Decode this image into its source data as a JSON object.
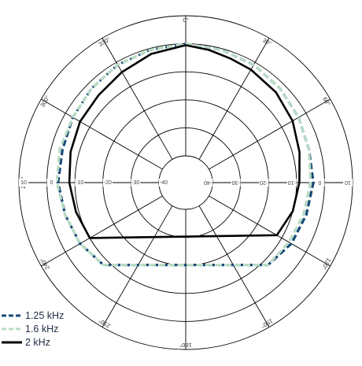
{
  "chart_data": {
    "type": "polar-line",
    "angle_ticks": [
      {
        "angle": 0,
        "label": "0°"
      },
      {
        "angle": 30,
        "label": "30°"
      },
      {
        "angle": 60,
        "label": "60°"
      },
      {
        "angle": 90,
        "label": "90°"
      },
      {
        "angle": 120,
        "label": "120°"
      },
      {
        "angle": 150,
        "label": "150°"
      },
      {
        "angle": 180,
        "label": "180°"
      },
      {
        "angle": 210,
        "label": "210°"
      },
      {
        "angle": 240,
        "label": "240°"
      },
      {
        "angle": 270,
        "label": "270°"
      },
      {
        "angle": 300,
        "label": "300°"
      },
      {
        "angle": 330,
        "label": "330°"
      }
    ],
    "radial_unit": "dB",
    "radial_range": [
      -40,
      10
    ],
    "radial_ticks_left": [
      "10",
      "0",
      "-10",
      "-20",
      "-30",
      "-40"
    ],
    "radial_ticks_right": [
      "-40",
      "-30",
      "-20",
      "-10",
      "0",
      "10"
    ],
    "series": [
      {
        "name": "1.25 kHz",
        "color": "#174a78",
        "style": "dash",
        "points": [
          [
            0,
            0
          ],
          [
            15,
            -0.5
          ],
          [
            30,
            -1
          ],
          [
            45,
            -2
          ],
          [
            60,
            -3
          ],
          [
            75,
            -4
          ],
          [
            90,
            -4
          ],
          [
            105,
            -5
          ],
          [
            120,
            -6
          ],
          [
            135,
            -8
          ],
          [
            225,
            -8
          ],
          [
            240,
            -6
          ],
          [
            255,
            -5
          ],
          [
            270,
            -4
          ],
          [
            285,
            -4
          ],
          [
            300,
            -3
          ],
          [
            315,
            -2
          ],
          [
            330,
            -1
          ],
          [
            345,
            -0.5
          ],
          [
            360,
            0
          ]
        ]
      },
      {
        "name": "1.6 kHz",
        "color": "#b9dcc4",
        "style": "dash",
        "points": [
          [
            0,
            0
          ],
          [
            15,
            -0.5
          ],
          [
            30,
            -1
          ],
          [
            45,
            -2
          ],
          [
            60,
            -3
          ],
          [
            75,
            -4
          ],
          [
            90,
            -5
          ],
          [
            105,
            -6
          ],
          [
            120,
            -7
          ],
          [
            135,
            -8
          ],
          [
            225,
            -8
          ],
          [
            240,
            -6
          ],
          [
            255,
            -5
          ],
          [
            270,
            -3.5
          ],
          [
            285,
            -3
          ],
          [
            300,
            -3
          ],
          [
            315,
            -2
          ],
          [
            330,
            -1
          ],
          [
            345,
            -0.5
          ],
          [
            360,
            0
          ]
        ]
      },
      {
        "name": "2 kHz",
        "color": "#000000",
        "style": "solid",
        "points": [
          [
            0,
            -0.5
          ],
          [
            10,
            -1.5
          ],
          [
            20,
            -2.5
          ],
          [
            30,
            -3
          ],
          [
            45,
            -4
          ],
          [
            60,
            -5.5
          ],
          [
            75,
            -7.5
          ],
          [
            90,
            -9
          ],
          [
            105,
            -10
          ],
          [
            120,
            -12
          ],
          [
            240,
            -10
          ],
          [
            255,
            -9
          ],
          [
            270,
            -8
          ],
          [
            285,
            -7
          ],
          [
            300,
            -6
          ],
          [
            315,
            -5.5
          ],
          [
            330,
            -4
          ],
          [
            345,
            -2
          ],
          [
            360,
            -0.5
          ]
        ]
      }
    ],
    "legend": [
      {
        "label": "1.25 kHz",
        "color": "#174a78",
        "style": "dash"
      },
      {
        "label": "1.6 kHz",
        "color": "#b9dcc4",
        "style": "dash"
      },
      {
        "label": "2 kHz",
        "color": "#000000",
        "style": "solid"
      }
    ],
    "grid": true
  }
}
